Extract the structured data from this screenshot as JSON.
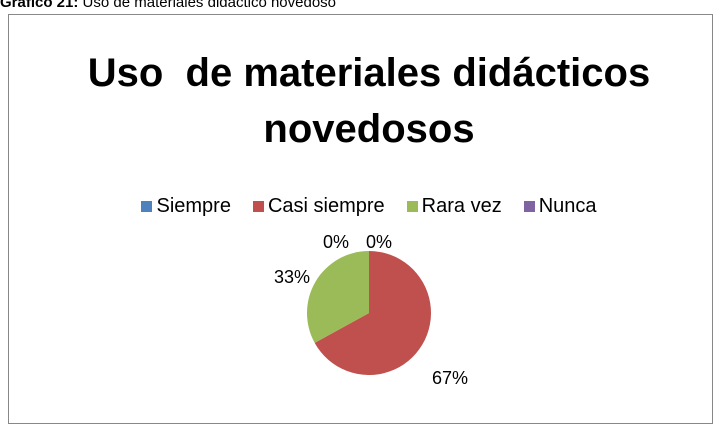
{
  "caption": {
    "label": "Gráfico 21:",
    "text": "Uso de materiales didáctico novedoso"
  },
  "chart_data": {
    "type": "pie",
    "title": "Uso  de materiales didácticos novedosos",
    "categories": [
      "Siempre",
      "Casi siempre",
      "Rara vez",
      "Nunca"
    ],
    "values": [
      0,
      67,
      33,
      0
    ],
    "value_labels": [
      "0%",
      "67%",
      "33%",
      "0%"
    ],
    "colors": [
      "#4f81bd",
      "#c0504d",
      "#9bbb59",
      "#8064a2"
    ],
    "legend": "top"
  }
}
